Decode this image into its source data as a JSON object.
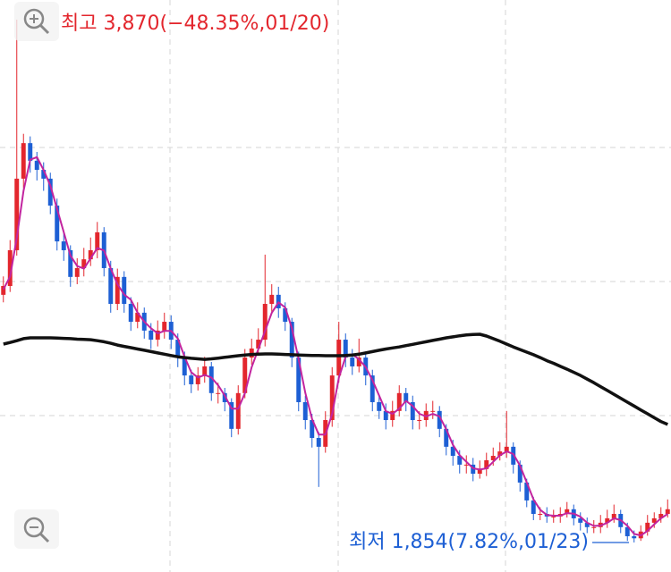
{
  "chart_data": {
    "type": "candlestick",
    "high_annotation": "최고 3,870(−48.35%,01/20)",
    "low_annotation": "최저 1,854(7.82%,01/23)",
    "up_color": "#e3262d",
    "down_color": "#1d5fd4",
    "ylim": [
      1740,
      3946
    ],
    "open": [
      2809,
      2843,
      2981,
      3257,
      3394,
      3326,
      3291,
      3257,
      3153,
      3015,
      2981,
      2878,
      2912,
      2946,
      2981,
      3050,
      2912,
      2774,
      2878,
      2774,
      2705,
      2740,
      2671,
      2636,
      2671,
      2705,
      2636,
      2567,
      2498,
      2464,
      2498,
      2533,
      2430,
      2430,
      2395,
      2292,
      2430,
      2567,
      2602,
      2636,
      2774,
      2809,
      2757,
      2705,
      2567,
      2395,
      2326,
      2257,
      2223,
      2326,
      2498,
      2636,
      2567,
      2533,
      2567,
      2498,
      2395,
      2361,
      2326,
      2361,
      2430,
      2395,
      2326,
      2326,
      2361,
      2361,
      2292,
      2223,
      2188,
      2154,
      2154,
      2119,
      2137,
      2171,
      2188,
      2205,
      2223,
      2154,
      2085,
      2016,
      1964,
      1964,
      1954,
      1954,
      1964,
      1982,
      1947,
      1930,
      1913,
      1913,
      1930,
      1947,
      1964,
      1913,
      1878,
      1870,
      1896,
      1930,
      1947,
      1964
    ],
    "high": [
      2880,
      3020,
      3870,
      3430,
      3420,
      3360,
      3320,
      3280,
      3180,
      3050,
      3000,
      2950,
      2990,
      3030,
      3090,
      3070,
      2940,
      2910,
      2900,
      2800,
      2780,
      2760,
      2700,
      2710,
      2740,
      2730,
      2660,
      2590,
      2520,
      2530,
      2570,
      2550,
      2470,
      2450,
      2410,
      2460,
      2600,
      2640,
      2680,
      2964,
      2850,
      2840,
      2780,
      2720,
      2590,
      2420,
      2350,
      2280,
      2360,
      2530,
      2705,
      2660,
      2600,
      2640,
      2590,
      2520,
      2420,
      2390,
      2400,
      2460,
      2450,
      2420,
      2360,
      2390,
      2400,
      2380,
      2310,
      2250,
      2210,
      2190,
      2180,
      2170,
      2200,
      2220,
      2240,
      2361,
      2240,
      2170,
      2100,
      2030,
      1990,
      1990,
      1980,
      1990,
      2010,
      2000,
      1970,
      1950,
      1940,
      1960,
      1980,
      2000,
      1980,
      1930,
      1900,
      1920,
      1960,
      1970,
      1990,
      2020
    ],
    "low": [
      2780,
      2820,
      2960,
      3220,
      3280,
      3250,
      3210,
      3120,
      2980,
      2940,
      2840,
      2850,
      2880,
      2920,
      2950,
      2880,
      2740,
      2750,
      2740,
      2670,
      2680,
      2640,
      2600,
      2610,
      2640,
      2600,
      2530,
      2460,
      2430,
      2440,
      2470,
      2400,
      2390,
      2360,
      2260,
      2270,
      2410,
      2540,
      2580,
      2610,
      2740,
      2720,
      2670,
      2530,
      2360,
      2290,
      2220,
      2068,
      2200,
      2300,
      2470,
      2530,
      2500,
      2510,
      2460,
      2360,
      2330,
      2290,
      2300,
      2340,
      2360,
      2290,
      2290,
      2300,
      2330,
      2260,
      2190,
      2150,
      2120,
      2120,
      2090,
      2100,
      2110,
      2150,
      2170,
      2180,
      2120,
      2050,
      1990,
      1940,
      1940,
      1930,
      1930,
      1930,
      1950,
      1920,
      1900,
      1890,
      1890,
      1890,
      1910,
      1930,
      1890,
      1860,
      1854,
      1860,
      1880,
      1910,
      1930,
      1950
    ],
    "close": [
      2843,
      2981,
      3257,
      3394,
      3326,
      3291,
      3257,
      3153,
      3015,
      2981,
      2878,
      2912,
      2946,
      2981,
      3050,
      2912,
      2774,
      2878,
      2774,
      2705,
      2740,
      2671,
      2636,
      2671,
      2705,
      2636,
      2567,
      2498,
      2464,
      2498,
      2533,
      2430,
      2430,
      2395,
      2292,
      2430,
      2567,
      2602,
      2636,
      2774,
      2809,
      2757,
      2705,
      2567,
      2395,
      2326,
      2257,
      2223,
      2326,
      2498,
      2636,
      2567,
      2533,
      2567,
      2498,
      2395,
      2361,
      2326,
      2361,
      2430,
      2395,
      2326,
      2326,
      2361,
      2361,
      2292,
      2223,
      2188,
      2154,
      2154,
      2119,
      2137,
      2171,
      2188,
      2205,
      2223,
      2154,
      2085,
      2016,
      1964,
      1964,
      1954,
      1954,
      1964,
      1982,
      1947,
      1930,
      1913,
      1913,
      1930,
      1947,
      1964,
      1913,
      1878,
      1870,
      1896,
      1930,
      1947,
      1964,
      1982
    ],
    "lines": [
      {
        "color": "#c2249f",
        "values": [
          2830,
          2880,
          3030,
          3210,
          3330,
          3340,
          3290,
          3230,
          3140,
          3050,
          2960,
          2920,
          2910,
          2950,
          2990,
          2980,
          2910,
          2850,
          2810,
          2790,
          2740,
          2705,
          2680,
          2660,
          2670,
          2670,
          2640,
          2570,
          2510,
          2490,
          2500,
          2490,
          2460,
          2420,
          2370,
          2370,
          2430,
          2530,
          2600,
          2670,
          2740,
          2780,
          2760,
          2680,
          2560,
          2430,
          2330,
          2270,
          2270,
          2350,
          2490,
          2570,
          2580,
          2560,
          2530,
          2480,
          2420,
          2360,
          2350,
          2370,
          2400,
          2380,
          2350,
          2340,
          2350,
          2340,
          2290,
          2230,
          2190,
          2165,
          2140,
          2135,
          2140,
          2165,
          2190,
          2205,
          2195,
          2150,
          2085,
          2020,
          1980,
          1960,
          1957,
          1957,
          1967,
          1965,
          1953,
          1930,
          1918,
          1919,
          1930,
          1947,
          1940,
          1918,
          1887,
          1881,
          1899,
          1924,
          1947,
          1964
        ]
      },
      {
        "color": "#111111",
        "values": [
          2619,
          2625,
          2632,
          2640,
          2643,
          2643,
          2643,
          2643,
          2642,
          2641,
          2640,
          2638,
          2637,
          2636,
          2632,
          2628,
          2622,
          2615,
          2610,
          2605,
          2600,
          2595,
          2590,
          2585,
          2580,
          2575,
          2570,
          2567,
          2564,
          2562,
          2560,
          2562,
          2565,
          2568,
          2571,
          2574,
          2577,
          2579,
          2580,
          2581,
          2581,
          2580,
          2579,
          2578,
          2577,
          2576,
          2575,
          2575,
          2574,
          2574,
          2574,
          2575,
          2577,
          2580,
          2585,
          2590,
          2595,
          2600,
          2604,
          2608,
          2613,
          2618,
          2623,
          2628,
          2633,
          2638,
          2643,
          2647,
          2651,
          2654,
          2656,
          2657,
          2650,
          2640,
          2630,
          2619,
          2608,
          2598,
          2588,
          2578,
          2567,
          2555,
          2545,
          2533,
          2522,
          2510,
          2498,
          2484,
          2470,
          2455,
          2440,
          2425,
          2410,
          2395,
          2380,
          2365,
          2350,
          2335,
          2320,
          2309
        ]
      }
    ]
  }
}
